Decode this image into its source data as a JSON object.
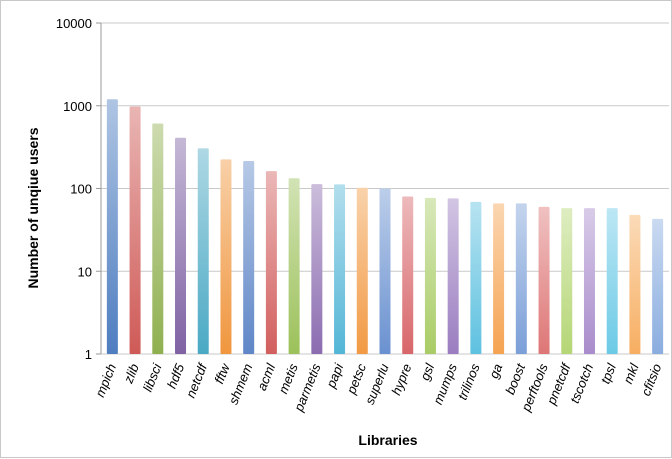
{
  "chart_data": {
    "type": "bar",
    "title": "",
    "xlabel": "Libraries",
    "ylabel": "Number of unqiue users",
    "yscale": "log",
    "ylim": [
      1,
      10000
    ],
    "yticks": [
      "1",
      "10",
      "100",
      "1000",
      "10000"
    ],
    "ytick_values": [
      1,
      10,
      100,
      1000,
      10000
    ],
    "grid": "horizontal",
    "legend": "none",
    "categories": [
      "mpich",
      "zlib",
      "libsci",
      "hdf5",
      "netcdf",
      "fftw",
      "shmem",
      "acml",
      "metis",
      "parmetis",
      "papi",
      "petsc",
      "superlu",
      "hypre",
      "gsl",
      "mumps",
      "trilinos",
      "ga",
      "boost",
      "perftools",
      "pnetcdf",
      "tscotch",
      "tpsl",
      "mkl",
      "cfitsio"
    ],
    "values": [
      1200,
      980,
      610,
      410,
      305,
      225,
      215,
      162,
      133,
      113,
      112,
      102,
      100,
      80,
      77,
      76,
      69,
      66,
      66,
      60,
      58,
      58,
      58,
      48,
      43
    ],
    "colors": [
      "#4e7dc0",
      "#cf5a57",
      "#8fb04f",
      "#7f62a3",
      "#4aa9c4",
      "#f0963e",
      "#5f86c7",
      "#d25f5e",
      "#9cc15a",
      "#8b6cb0",
      "#53b6d6",
      "#f29a44",
      "#6a91d0",
      "#d8666a",
      "#a9cc66",
      "#9a7dc0",
      "#5ec1e0",
      "#f5a351",
      "#7b9fd8",
      "#de7676",
      "#b5d675",
      "#a98ccb",
      "#6ccae6",
      "#f7ae61",
      "#8aaddf"
    ]
  }
}
